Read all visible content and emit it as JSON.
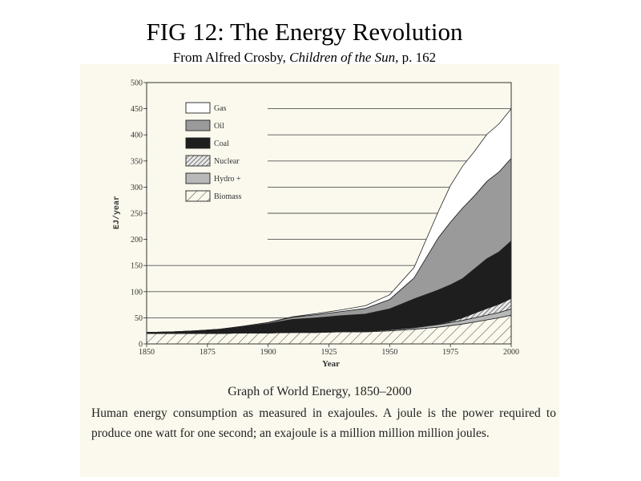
{
  "header": {
    "title": "FIG 12: The Energy Revolution",
    "source_prefix": "From Alfred Crosby, ",
    "source_book": "Children of the Sun",
    "source_suffix": ", p. 162"
  },
  "caption": {
    "title": "Graph of World Energy, 1850–2000",
    "text": "Human energy consumption as measured in exajoules. A joule is the power required to produce one watt for one second; an exajoule is a million million million joules."
  },
  "chart_data": {
    "type": "area",
    "stacked": true,
    "xlabel": "Year",
    "ylabel": "EJ/year",
    "xlim": [
      1850,
      2000
    ],
    "ylim": [
      0,
      500
    ],
    "xticks": [
      1850,
      1875,
      1900,
      1925,
      1950,
      1975,
      2000
    ],
    "yticks": [
      0,
      50,
      100,
      150,
      200,
      250,
      300,
      350,
      400,
      450,
      500
    ],
    "grid": "horizontal",
    "legend_position": "top-left",
    "x": [
      1850,
      1860,
      1870,
      1880,
      1890,
      1900,
      1910,
      1920,
      1930,
      1940,
      1950,
      1960,
      1970,
      1975,
      1980,
      1985,
      1990,
      1995,
      2000
    ],
    "series": [
      {
        "name": "Biomass",
        "fill": "hatch-diagonal-light",
        "values": [
          20,
          20,
          20,
          20,
          21,
          21,
          22,
          22,
          23,
          23,
          25,
          28,
          32,
          35,
          38,
          42,
          46,
          50,
          55
        ]
      },
      {
        "name": "Hydro +",
        "fill": "#b8b8b8",
        "values": [
          0,
          0,
          0,
          0,
          0,
          0,
          0,
          0,
          1,
          1,
          2,
          3,
          5,
          6,
          7,
          8,
          9,
          10,
          12
        ]
      },
      {
        "name": "Nuclear",
        "fill": "hatch-diagonal-dense",
        "values": [
          0,
          0,
          0,
          0,
          0,
          0,
          0,
          0,
          0,
          0,
          0,
          0,
          1,
          2,
          5,
          9,
          13,
          16,
          20
        ]
      },
      {
        "name": "Coal",
        "fill": "#1e1e1e",
        "values": [
          2,
          3,
          5,
          8,
          12,
          18,
          25,
          28,
          30,
          33,
          40,
          55,
          65,
          70,
          75,
          85,
          95,
          100,
          110
        ]
      },
      {
        "name": "Oil",
        "fill": "#9a9a9a",
        "values": [
          0,
          0,
          0,
          0,
          1,
          2,
          4,
          6,
          8,
          11,
          18,
          40,
          100,
          120,
          135,
          140,
          148,
          153,
          158
        ]
      },
      {
        "name": "Gas",
        "fill": "#ffffff",
        "values": [
          0,
          0,
          0,
          0,
          0,
          0,
          1,
          2,
          3,
          5,
          9,
          20,
          50,
          70,
          80,
          85,
          90,
          92,
          95
        ]
      }
    ]
  }
}
